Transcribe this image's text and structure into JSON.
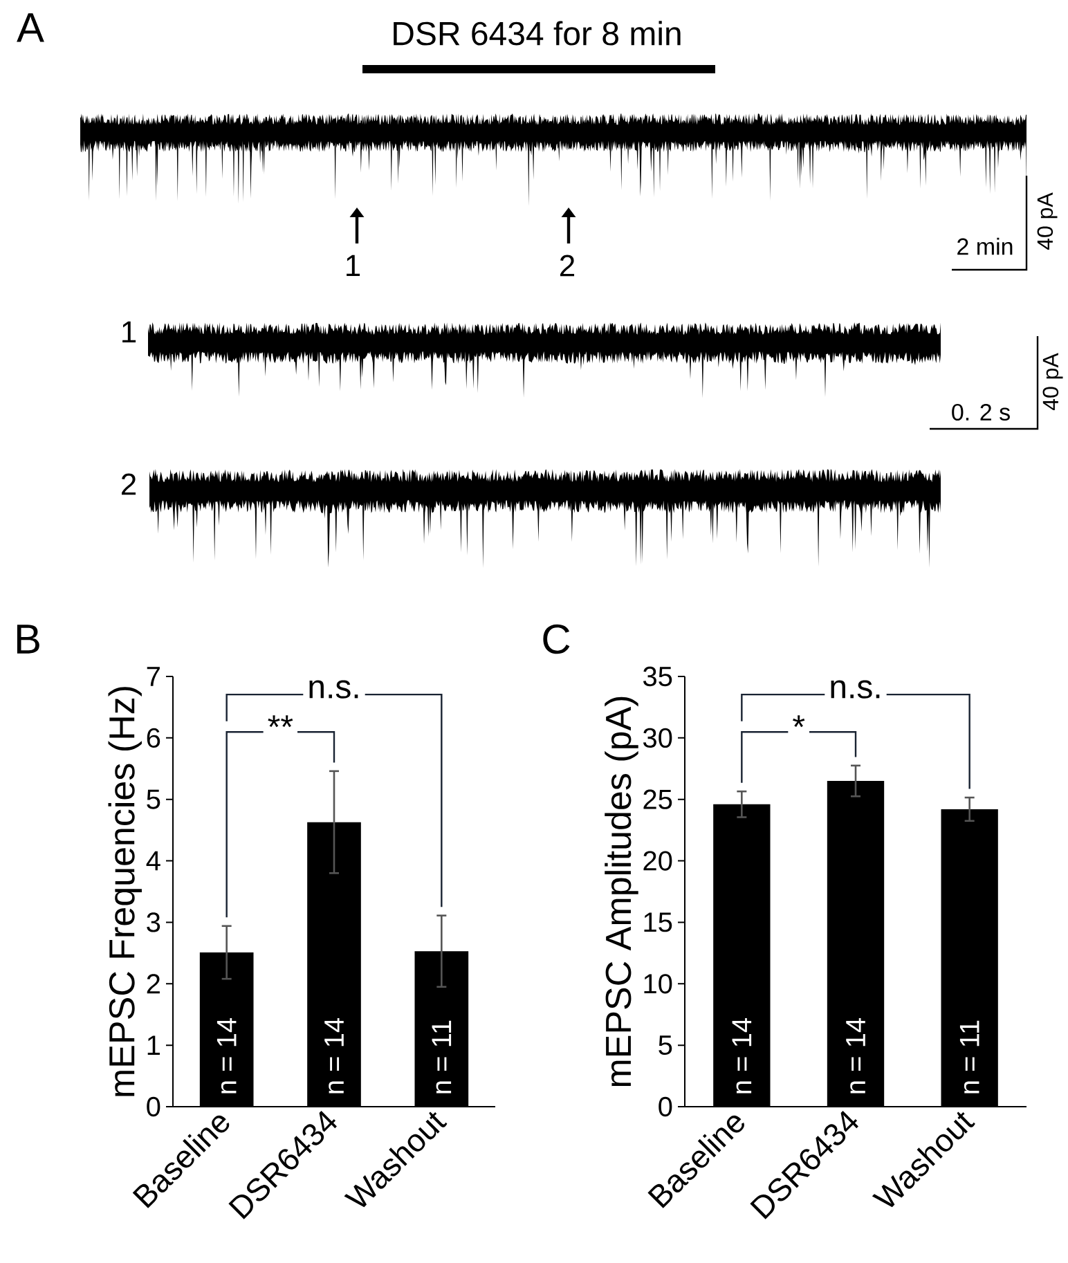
{
  "chart_data": [
    {
      "type": "other",
      "title": "DSR 6434 for 8 min",
      "annotations": [
        "A",
        "1",
        "2",
        "40 pA",
        "2 min",
        "1",
        "40 pA",
        "0. 2 s",
        "2"
      ]
    },
    {
      "type": "bar",
      "ylabel": "mEPSC Frequencies (Hz)",
      "categories": [
        "Baseline",
        "DSR6434",
        "Washout"
      ],
      "values": [
        2.51,
        4.63,
        2.53
      ],
      "errors": [
        0.43,
        0.83,
        0.58
      ],
      "color": "#000000",
      "ylim": [
        0,
        7
      ],
      "yticks": [
        0,
        1,
        2,
        3,
        4,
        5,
        6,
        7
      ],
      "annotations": [
        "B",
        "n.s.",
        "**",
        "n = 14",
        "n = 14",
        "n = 11"
      ]
    },
    {
      "type": "bar",
      "ylabel": "mEPSC Amplitudes (pA)",
      "categories": [
        "Baseline",
        "DSR6434",
        "Washout"
      ],
      "values": [
        24.6,
        26.5,
        24.2
      ],
      "errors": [
        1.05,
        1.25,
        0.95
      ],
      "color": "#000000",
      "ylim": [
        0,
        35
      ],
      "yticks": [
        0,
        5,
        10,
        15,
        20,
        25,
        30,
        35
      ],
      "annotations": [
        "C",
        "n.s.",
        "*",
        "n = 14",
        "n = 14",
        "n = 11"
      ]
    }
  ]
}
